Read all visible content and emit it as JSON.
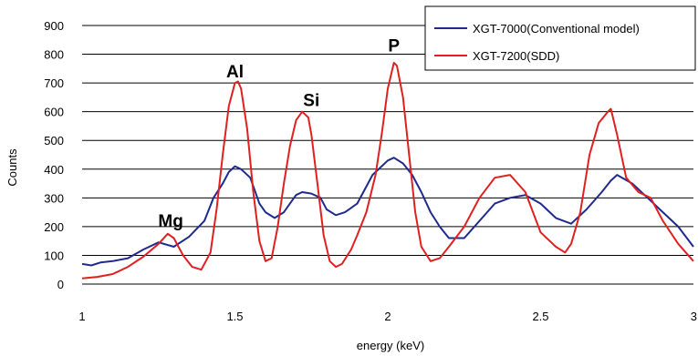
{
  "chart_data": {
    "type": "line",
    "xlabel": "energy (keV)",
    "ylabel": "Counts",
    "xlim": [
      1,
      3
    ],
    "ylim": [
      0,
      900
    ],
    "x_ticks": [
      "1",
      "1.5",
      "2",
      "2.5",
      "3"
    ],
    "y_ticks": [
      "0",
      "100",
      "200",
      "300",
      "400",
      "500",
      "600",
      "700",
      "800",
      "900"
    ],
    "grid": "horizontal",
    "legend_position": "top-right",
    "annotations": [
      {
        "text": "Mg",
        "x": 1.29,
        "y": 200
      },
      {
        "text": "Al",
        "x": 1.5,
        "y": 720
      },
      {
        "text": "Si",
        "x": 1.75,
        "y": 620
      },
      {
        "text": "P",
        "x": 2.02,
        "y": 810
      }
    ],
    "series": [
      {
        "name": "XGT-7000(Conventional model)",
        "color": "#1f2a8c",
        "x": [
          1.0,
          1.03,
          1.06,
          1.1,
          1.15,
          1.2,
          1.25,
          1.3,
          1.35,
          1.4,
          1.43,
          1.46,
          1.48,
          1.5,
          1.52,
          1.55,
          1.58,
          1.6,
          1.63,
          1.66,
          1.68,
          1.7,
          1.72,
          1.75,
          1.78,
          1.8,
          1.83,
          1.86,
          1.9,
          1.95,
          1.98,
          2.0,
          2.02,
          2.05,
          2.08,
          2.11,
          2.14,
          2.17,
          2.2,
          2.25,
          2.3,
          2.35,
          2.4,
          2.45,
          2.5,
          2.55,
          2.6,
          2.65,
          2.7,
          2.73,
          2.75,
          2.8,
          2.85,
          2.9,
          2.95,
          3.0
        ],
        "y": [
          70,
          65,
          75,
          80,
          90,
          120,
          145,
          130,
          165,
          220,
          300,
          350,
          390,
          410,
          400,
          370,
          280,
          250,
          230,
          250,
          280,
          310,
          320,
          315,
          300,
          260,
          240,
          250,
          280,
          380,
          410,
          430,
          440,
          420,
          380,
          320,
          250,
          200,
          160,
          160,
          220,
          280,
          300,
          310,
          280,
          230,
          210,
          260,
          320,
          360,
          380,
          350,
          300,
          250,
          200,
          130
        ]
      },
      {
        "name": "XGT-7200(SDD)",
        "color": "#e02020",
        "x": [
          1.0,
          1.05,
          1.1,
          1.15,
          1.2,
          1.25,
          1.28,
          1.3,
          1.33,
          1.36,
          1.39,
          1.42,
          1.44,
          1.46,
          1.48,
          1.5,
          1.51,
          1.52,
          1.54,
          1.56,
          1.58,
          1.6,
          1.62,
          1.64,
          1.66,
          1.68,
          1.7,
          1.72,
          1.74,
          1.75,
          1.77,
          1.79,
          1.81,
          1.83,
          1.85,
          1.88,
          1.9,
          1.93,
          1.96,
          1.98,
          2.0,
          2.02,
          2.03,
          2.05,
          2.07,
          2.09,
          2.11,
          2.14,
          2.17,
          2.2,
          2.25,
          2.3,
          2.35,
          2.4,
          2.45,
          2.5,
          2.55,
          2.58,
          2.6,
          2.63,
          2.66,
          2.69,
          2.72,
          2.73,
          2.75,
          2.78,
          2.82,
          2.86,
          2.9,
          2.95,
          3.0
        ],
        "y": [
          20,
          25,
          35,
          60,
          95,
          140,
          175,
          160,
          100,
          60,
          50,
          110,
          260,
          450,
          620,
          700,
          705,
          680,
          540,
          320,
          150,
          80,
          90,
          200,
          350,
          480,
          570,
          600,
          580,
          520,
          350,
          170,
          80,
          60,
          70,
          120,
          170,
          250,
          380,
          520,
          680,
          770,
          760,
          650,
          450,
          250,
          130,
          80,
          90,
          130,
          200,
          300,
          370,
          380,
          320,
          180,
          130,
          110,
          140,
          250,
          450,
          560,
          600,
          610,
          520,
          370,
          320,
          300,
          220,
          140,
          80
        ]
      }
    ]
  }
}
